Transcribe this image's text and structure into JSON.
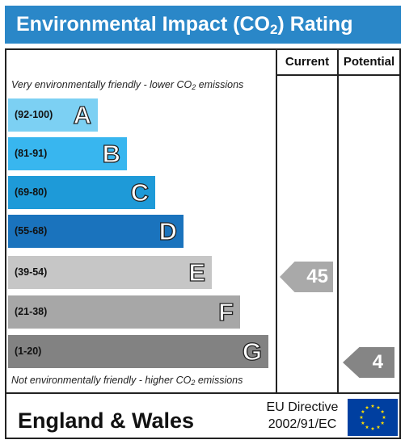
{
  "header": {
    "title_prefix": "Environmental Impact (CO",
    "title_sub": "2",
    "title_suffix": ") Rating"
  },
  "columns": {
    "current": "Current",
    "potential": "Potential"
  },
  "captions": {
    "top_prefix": "Very environmentally friendly - lower CO",
    "top_sub": "2",
    "top_suffix": " emissions",
    "bottom_prefix": "Not environmentally friendly - higher CO",
    "bottom_sub": "2",
    "bottom_suffix": " emissions"
  },
  "bands": [
    {
      "range": "(92-100)",
      "letter": "A",
      "color": "#7cd0f3"
    },
    {
      "range": "(81-91)",
      "letter": "B",
      "color": "#38b6ef"
    },
    {
      "range": "(69-80)",
      "letter": "C",
      "color": "#1e9ad8"
    },
    {
      "range": "(55-68)",
      "letter": "D",
      "color": "#1a73bd"
    },
    {
      "range": "(39-54)",
      "letter": "E",
      "color": "#c6c6c6"
    },
    {
      "range": "(21-38)",
      "letter": "F",
      "color": "#a7a7a7"
    },
    {
      "range": "(1-20)",
      "letter": "G",
      "color": "#828282"
    }
  ],
  "ratings": {
    "current": "45",
    "potential": "4"
  },
  "footer": {
    "region": "England & Wales",
    "directive_line1": "EU Directive",
    "directive_line2": "2002/91/EC"
  },
  "flag": {
    "background": "#003fa0",
    "star_color": "#ffdd00",
    "icon": "eu-flag-icon"
  }
}
